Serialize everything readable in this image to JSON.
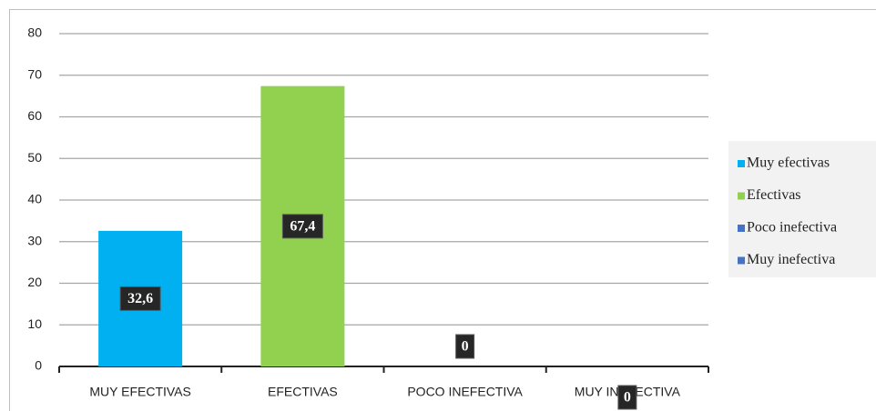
{
  "chart_data": {
    "type": "bar",
    "categories": [
      "MUY EFECTIVAS",
      "EFECTIVAS",
      "POCO INEFECTIVA",
      "MUY INEFECTIVA"
    ],
    "values": [
      32.6,
      67.4,
      0,
      0
    ],
    "value_labels": [
      "32,6",
      "67,4",
      "0",
      "0"
    ],
    "colors": [
      "#00b0f0",
      "#92d050",
      "#4472c4",
      "#4472c4"
    ],
    "legend": [
      "Muy efectivas",
      "Efectivas",
      "Poco inefectiva",
      "Muy inefectiva"
    ],
    "ylim": [
      0,
      80
    ],
    "yticks": [
      0,
      10,
      20,
      30,
      40,
      50,
      60,
      70,
      80
    ],
    "grid": true
  }
}
